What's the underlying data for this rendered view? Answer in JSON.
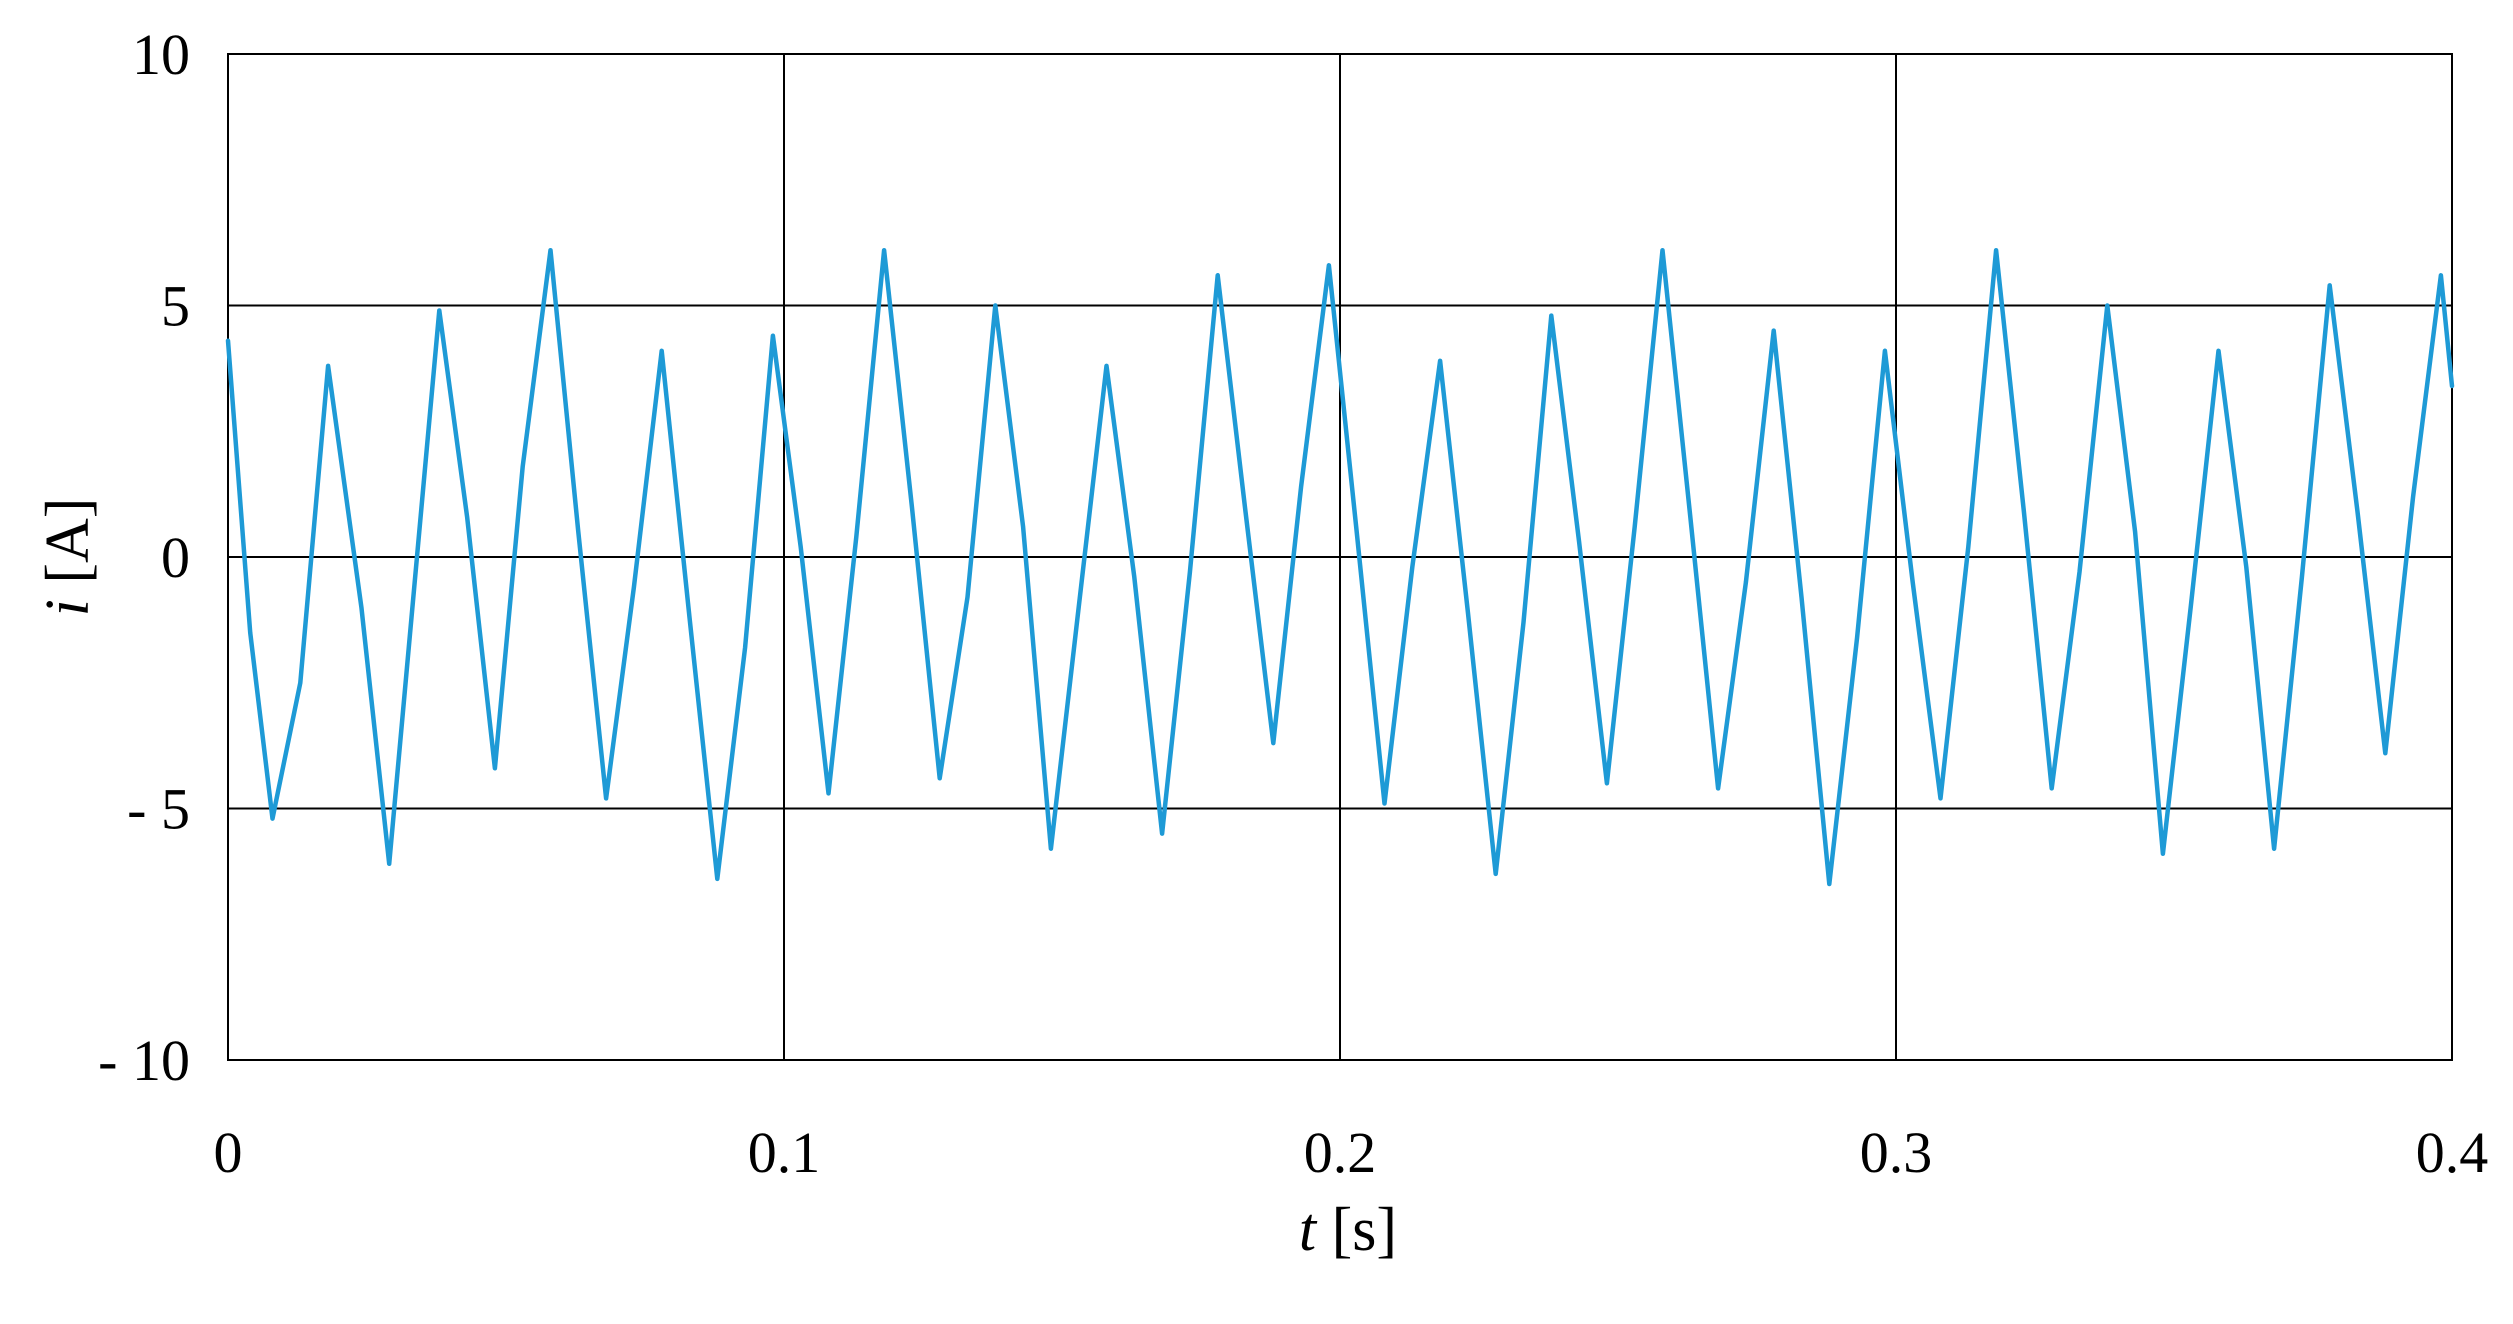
{
  "chart_data": {
    "type": "line",
    "title": "",
    "xlabel": {
      "var": "t",
      "unit": " [s]"
    },
    "ylabel": {
      "var": "i",
      "unit": " [A]"
    },
    "xlim": [
      0,
      0.4
    ],
    "ylim": [
      -10,
      10
    ],
    "x_ticks": [
      0,
      0.1,
      0.2,
      0.3,
      0.4
    ],
    "x_tick_labels": [
      "0",
      "0.1",
      "0.2",
      "0.3",
      "0.4"
    ],
    "y_ticks": [
      10,
      5,
      0,
      -5,
      -10
    ],
    "y_tick_labels": [
      "10",
      "5",
      "0",
      "- 5",
      "- 10"
    ],
    "grid": true,
    "series": [
      {
        "color": "#1E9AD6",
        "x": [
          0,
          0.004,
          0.008,
          0.013,
          0.018,
          0.024,
          0.029,
          0.033,
          0.038,
          0.043,
          0.048,
          0.053,
          0.058,
          0.063,
          0.068,
          0.073,
          0.078,
          0.083,
          0.088,
          0.093,
          0.098,
          0.103,
          0.108,
          0.113,
          0.118,
          0.123,
          0.128,
          0.133,
          0.138,
          0.143,
          0.148,
          0.153,
          0.158,
          0.163,
          0.168,
          0.173,
          0.178,
          0.183,
          0.188,
          0.193,
          0.198,
          0.203,
          0.208,
          0.213,
          0.218,
          0.223,
          0.228,
          0.233,
          0.238,
          0.243,
          0.248,
          0.253,
          0.258,
          0.263,
          0.268,
          0.273,
          0.278,
          0.283,
          0.288,
          0.293,
          0.298,
          0.303,
          0.308,
          0.313,
          0.318,
          0.323,
          0.328,
          0.333,
          0.338,
          0.343,
          0.348,
          0.353,
          0.358,
          0.363,
          0.368,
          0.373,
          0.378,
          0.383,
          0.388,
          0.393,
          0.398,
          0.4
        ],
        "y": [
          4.3,
          -1.5,
          -5.2,
          -2.5,
          3.8,
          -1.0,
          -6.1,
          -1.2,
          4.9,
          0.8,
          -4.2,
          1.8,
          6.1,
          0.5,
          -4.8,
          -0.6,
          4.1,
          -1.2,
          -6.4,
          -1.8,
          4.4,
          0.2,
          -4.7,
          0.4,
          6.1,
          1.0,
          -4.4,
          -0.8,
          5.0,
          0.6,
          -5.8,
          -1.0,
          3.8,
          -0.4,
          -5.5,
          -0.3,
          5.6,
          0.9,
          -3.7,
          1.4,
          5.8,
          0.5,
          -4.9,
          -0.2,
          3.9,
          -1.1,
          -6.3,
          -1.3,
          4.8,
          0.3,
          -4.5,
          0.6,
          6.1,
          0.8,
          -4.6,
          -0.5,
          4.5,
          -0.8,
          -6.5,
          -1.6,
          4.1,
          -0.5,
          -4.8,
          0.2,
          6.1,
          0.9,
          -4.6,
          -0.3,
          5.0,
          0.5,
          -5.9,
          -1.0,
          4.1,
          -0.2,
          -5.8,
          -0.4,
          5.4,
          0.9,
          -3.9,
          1.2,
          5.6,
          3.4
        ]
      }
    ]
  }
}
